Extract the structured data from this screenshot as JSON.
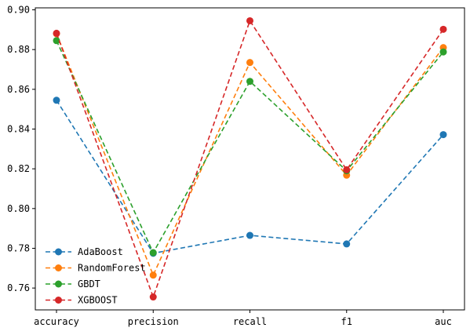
{
  "chart_data": {
    "type": "line",
    "categories": [
      "accuracy",
      "precision",
      "recall",
      "f1",
      "auc"
    ],
    "series": [
      {
        "name": "AdaBoost",
        "color": "#1f77b4",
        "values": [
          0.8545,
          0.7775,
          0.7865,
          0.7822,
          0.8372
        ]
      },
      {
        "name": "RandomForest",
        "color": "#ff7f0e",
        "values": [
          0.888,
          0.7665,
          0.8735,
          0.8168,
          0.881
        ]
      },
      {
        "name": "GBDT",
        "color": "#2ca02c",
        "values": [
          0.8845,
          0.7778,
          0.864,
          0.819,
          0.8788
        ]
      },
      {
        "name": "XGBOOST",
        "color": "#d62728",
        "values": [
          0.8882,
          0.7555,
          0.8945,
          0.8195,
          0.8902
        ]
      }
    ],
    "title": "",
    "xlabel": "",
    "ylabel": "",
    "ylim": [
      0.749,
      0.901
    ],
    "yticks": [
      "0.76",
      "0.78",
      "0.80",
      "0.82",
      "0.84",
      "0.86",
      "0.88",
      "0.90"
    ],
    "line_style": "dashed",
    "marker": "circle",
    "grid": false,
    "legend_position": "lower-left"
  }
}
